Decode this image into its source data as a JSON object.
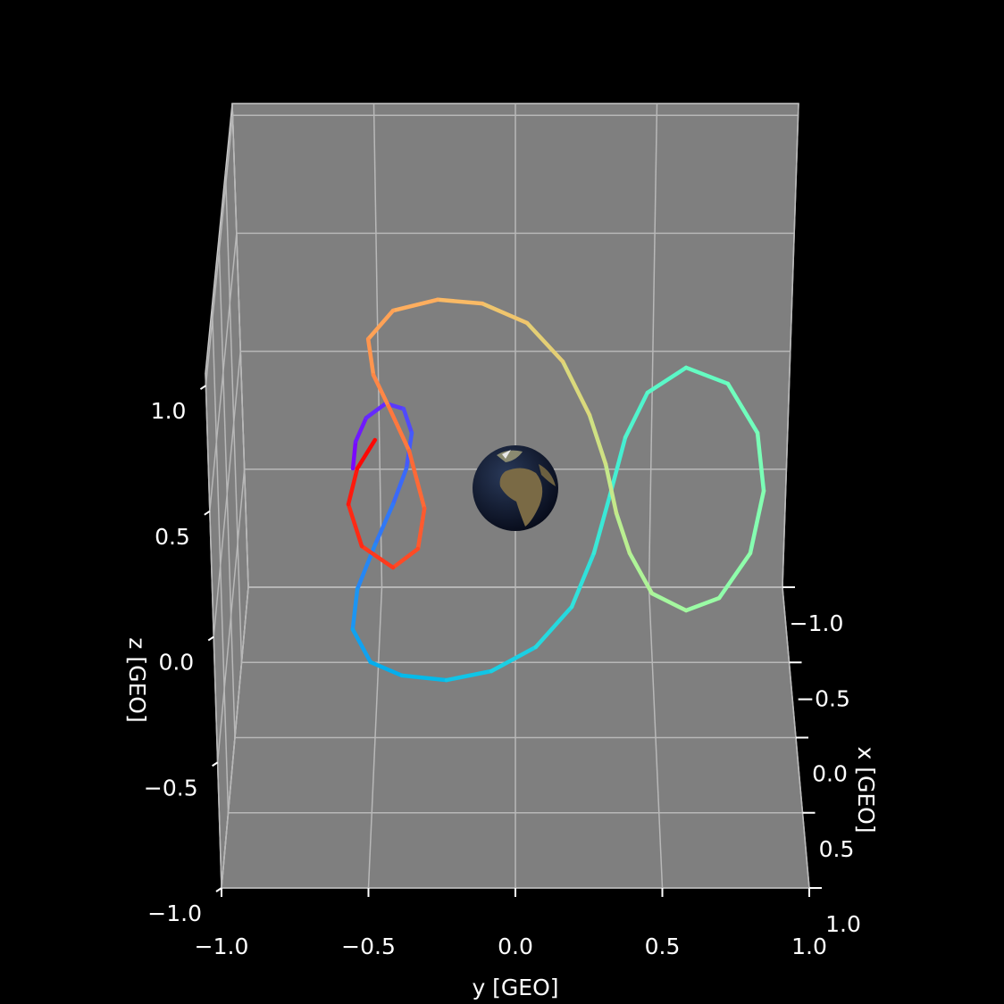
{
  "chart_data": {
    "type": "line3d",
    "xlabel": "x [GEO]",
    "ylabel": "y [GEO]",
    "zlabel": "z [GEO]",
    "colormap": "rainbow",
    "grid": true,
    "pane_color": "#7f7f7f",
    "xlim": [
      -1,
      1
    ],
    "ylim": [
      -1,
      1
    ],
    "zlim": [
      -1,
      1.05
    ],
    "xticks": [
      {
        "value": -1,
        "label": "−1.0"
      },
      {
        "value": -0.5,
        "label": "−0.5"
      },
      {
        "value": 0,
        "label": "0.0"
      },
      {
        "value": 0.5,
        "label": "0.5"
      },
      {
        "value": 1,
        "label": "1.0"
      }
    ],
    "yticks": [
      {
        "value": -1,
        "label": "−1.0"
      },
      {
        "value": -0.5,
        "label": "−0.5"
      },
      {
        "value": 0,
        "label": "0.0"
      },
      {
        "value": 0.5,
        "label": "0.5"
      },
      {
        "value": 1,
        "label": "1.0"
      }
    ],
    "zticks": [
      {
        "value": -1,
        "label": "−1.0"
      },
      {
        "value": -0.5,
        "label": "−0.5"
      },
      {
        "value": 0,
        "label": "0.0"
      },
      {
        "value": 0.5,
        "label": "0.5"
      },
      {
        "value": 1,
        "label": "1.0"
      }
    ],
    "x": [
      0,
      0,
      0,
      0,
      0,
      0,
      0,
      0,
      0,
      0,
      0,
      0,
      0,
      0,
      0,
      0,
      0,
      0,
      0,
      0,
      0,
      0,
      0,
      0,
      0,
      0,
      0,
      0,
      0,
      0,
      0,
      0,
      0,
      0,
      0,
      0,
      0,
      0,
      0,
      0,
      0,
      0,
      0,
      0,
      0,
      0,
      0,
      0,
      0
    ],
    "y": [
      -0.562,
      -0.551,
      -0.513,
      -0.445,
      -0.384,
      -0.357,
      -0.377,
      -0.425,
      -0.489,
      -0.554,
      -0.573,
      -0.512,
      -0.402,
      -0.244,
      -0.085,
      0.072,
      0.198,
      0.274,
      0.328,
      0.379,
      0.453,
      0.584,
      0.728,
      0.834,
      0.861,
      0.82,
      0.715,
      0.6,
      0.479,
      0.399,
      0.351,
      0.312,
      0.255,
      0.162,
      0.04,
      -0.112,
      -0.264,
      -0.416,
      -0.502,
      -0.486,
      -0.436,
      -0.367,
      -0.316,
      -0.34,
      -0.428,
      -0.536,
      -0.58,
      -0.547,
      -0.484
    ],
    "z": [
      0.105,
      0.215,
      0.313,
      0.372,
      0.35,
      0.251,
      0.105,
      -0.042,
      -0.207,
      -0.39,
      -0.555,
      -0.69,
      -0.745,
      -0.764,
      -0.727,
      -0.628,
      -0.463,
      -0.243,
      -0.005,
      0.233,
      0.416,
      0.519,
      0.453,
      0.251,
      0.013,
      -0.243,
      -0.427,
      -0.478,
      -0.408,
      -0.243,
      -0.079,
      0.123,
      0.324,
      0.544,
      0.702,
      0.782,
      0.798,
      0.753,
      0.636,
      0.489,
      0.361,
      0.178,
      -0.059,
      -0.225,
      -0.302,
      -0.214,
      -0.042,
      0.105,
      0.222
    ]
  }
}
